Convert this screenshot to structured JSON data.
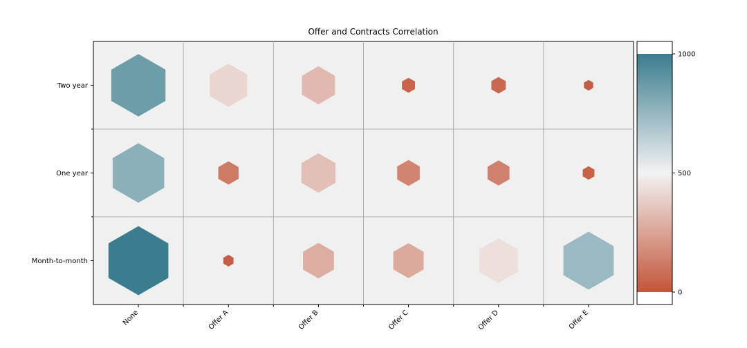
{
  "chart_data": {
    "type": "heatmap",
    "title": "Offer and Contracts Correlation",
    "xlabel": "",
    "ylabel": "",
    "x_categories": [
      "None",
      "Offer A",
      "Offer B",
      "Offer C",
      "Offer D",
      "Offer E"
    ],
    "y_categories": [
      "Two year",
      "One year",
      "Month-to-month"
    ],
    "values": [
      [
        860,
        410,
        320,
        50,
        60,
        25
      ],
      [
        780,
        120,
        340,
        150,
        140,
        40
      ],
      [
        1050,
        30,
        280,
        270,
        440,
        740
      ]
    ],
    "colorbar": {
      "range": [
        0,
        1000
      ],
      "ticks": [
        0,
        500,
        1000
      ],
      "tick_labels": [
        "0",
        "500",
        "1000"
      ],
      "low_color": "#c3553a",
      "mid_color": "#f2f2f2",
      "high_color": "#3b7c8e"
    },
    "marker": "hexagon",
    "size_encodes_value": true,
    "grid": true,
    "background": "#f0f0f0"
  }
}
